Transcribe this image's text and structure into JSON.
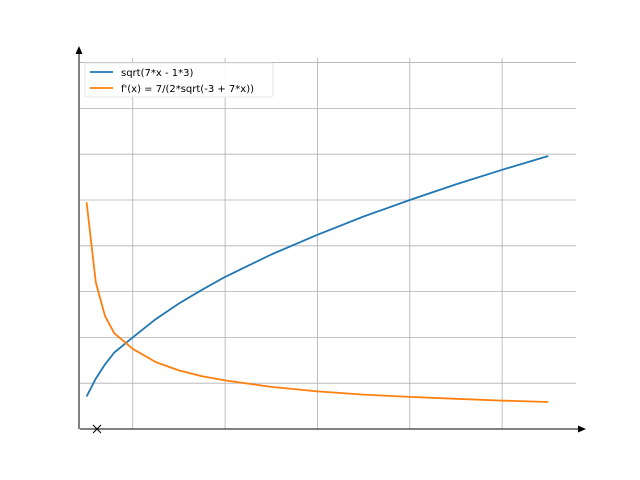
{
  "chart_data": {
    "type": "line",
    "title": "",
    "xlabel": "",
    "ylabel": "",
    "xlim": [
      0.429,
      5.8
    ],
    "ylim": [
      0,
      8.1
    ],
    "grid": true,
    "legend_position": "top-left",
    "x_axis_break": true,
    "series": [
      {
        "name": "sqrt(7*x - 1*3)",
        "color": "#1f77b4",
        "x": [
          0.5,
          0.6,
          0.7,
          0.8,
          1.0,
          1.25,
          1.5,
          1.75,
          2.0,
          2.5,
          3.0,
          3.5,
          4.0,
          4.5,
          5.0,
          5.5
        ],
        "y": [
          0.71,
          1.1,
          1.41,
          1.67,
          2.0,
          2.4,
          2.74,
          3.04,
          3.32,
          3.81,
          4.24,
          4.64,
          5.0,
          5.34,
          5.66,
          5.96
        ]
      },
      {
        "name": "f'(x) = 7/(2*sqrt(-3 + 7*x))",
        "color": "#ff7f0e",
        "x": [
          0.5,
          0.6,
          0.7,
          0.8,
          1.0,
          1.25,
          1.5,
          1.75,
          2.0,
          2.5,
          3.0,
          3.5,
          4.0,
          4.5,
          5.0,
          5.5
        ],
        "y": [
          4.95,
          3.2,
          2.47,
          2.09,
          1.75,
          1.46,
          1.28,
          1.15,
          1.06,
          0.92,
          0.82,
          0.75,
          0.7,
          0.66,
          0.62,
          0.59
        ]
      }
    ]
  }
}
